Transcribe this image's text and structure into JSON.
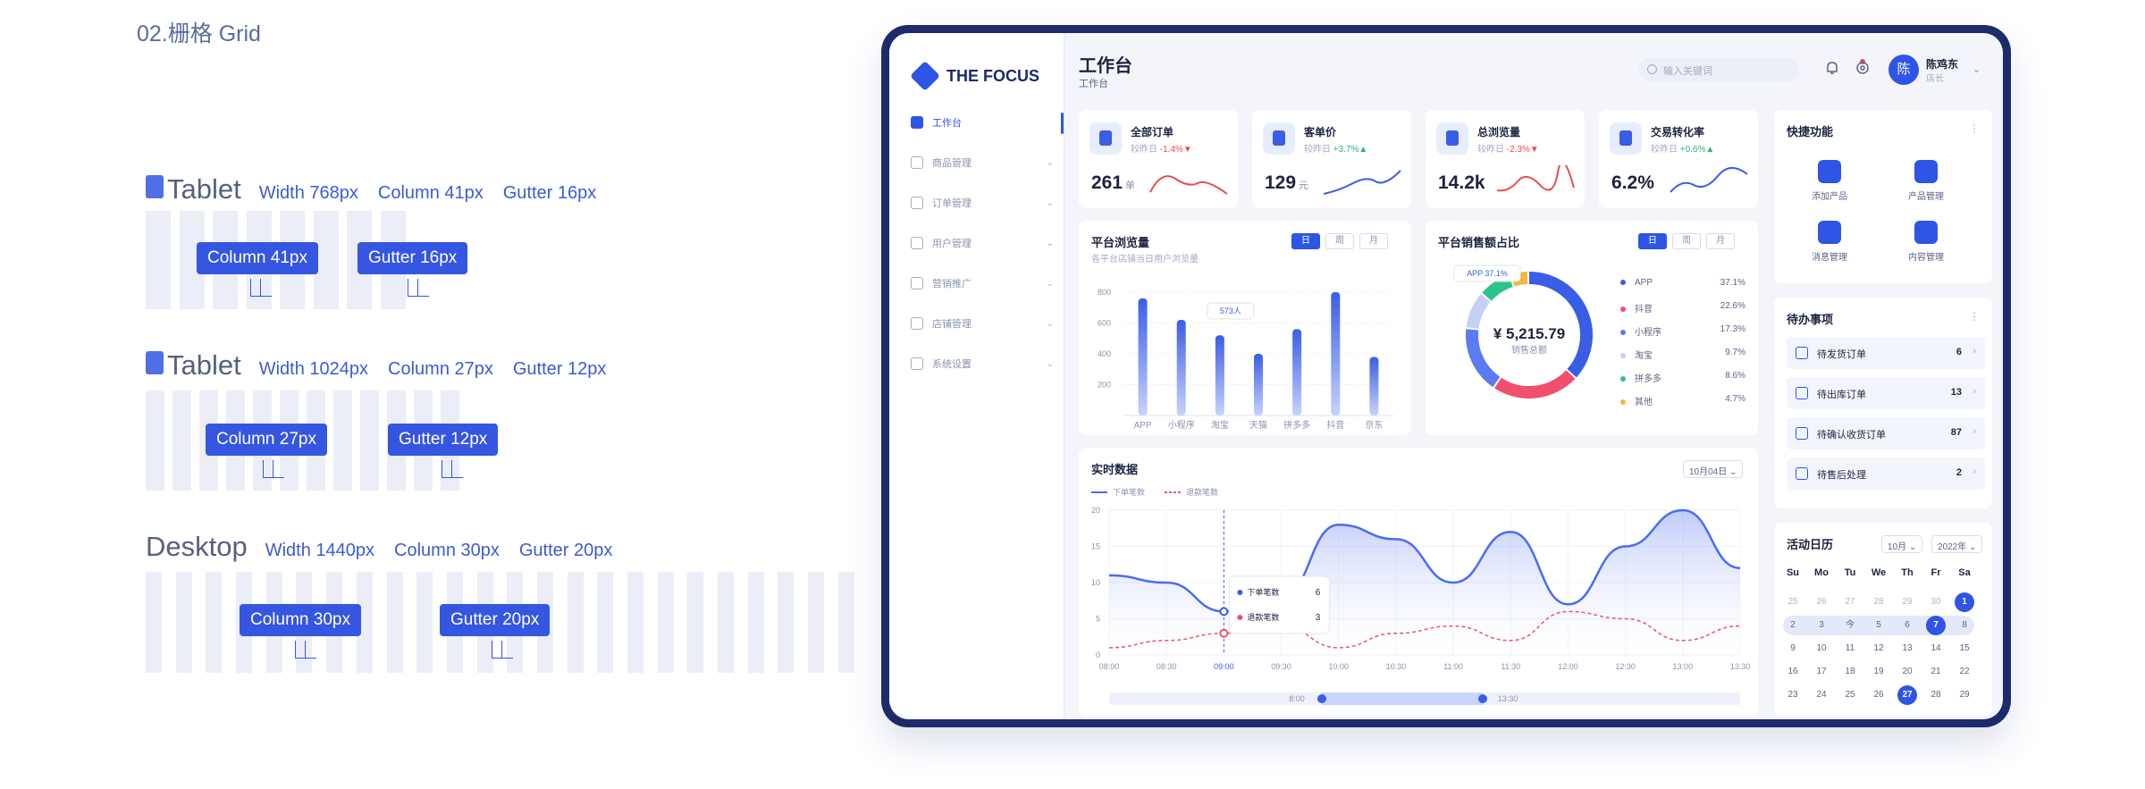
{
  "spec": {
    "title": "02.栅格 Grid",
    "grids": [
      {
        "name": "Tablet",
        "width": "Width 768px",
        "column": "Column 41px",
        "gutter": "Gutter 16px",
        "tag_col": "Column 41px",
        "tag_gut": "Gutter 16px"
      },
      {
        "name": "Tablet",
        "width": "Width 1024px",
        "column": "Column 27px",
        "gutter": "Gutter 12px",
        "tag_col": "Column 27px",
        "tag_gut": "Gutter 12px"
      },
      {
        "name": "Desktop",
        "width": "Width 1440px",
        "column": "Column 30px",
        "gutter": "Gutter 20px",
        "tag_col": "Column 30px",
        "tag_gut": "Gutter 20px"
      }
    ]
  },
  "app": {
    "logo": "THE FOCUS",
    "nav": [
      {
        "label": "工作台",
        "icon": "workbench-icon",
        "active": true
      },
      {
        "label": "商品管理",
        "icon": "box-icon"
      },
      {
        "label": "订单管理",
        "icon": "order-icon"
      },
      {
        "label": "用户管理",
        "icon": "user-icon"
      },
      {
        "label": "营销推广",
        "icon": "marketing-icon"
      },
      {
        "label": "店铺管理",
        "icon": "store-icon"
      },
      {
        "label": "系统设置",
        "icon": "settings-icon"
      }
    ],
    "header": {
      "title": "工作台",
      "subtitle": "工作台",
      "search_placeholder": "输入关键词",
      "user_initial": "陈",
      "user_name": "陈鸡东",
      "user_role": "店长"
    },
    "kpis": [
      {
        "label": "全部订单",
        "delta_prefix": "较昨日",
        "delta": "-1.4%▼",
        "trend": "down",
        "value": "261",
        "unit": "单",
        "spark_color": "#e94d4d"
      },
      {
        "label": "客单价",
        "delta_prefix": "较昨日",
        "delta": "+3.7%▲",
        "trend": "up",
        "value": "129",
        "unit": "元",
        "spark_color": "#3a5de6"
      },
      {
        "label": "总浏览量",
        "delta_prefix": "较昨日",
        "delta": "-2.3%▼",
        "trend": "down",
        "value": "14.2k",
        "unit": "",
        "spark_color": "#e94d4d"
      },
      {
        "label": "交易转化率",
        "delta_prefix": "较昨日",
        "delta": "+0.6%▲",
        "trend": "up",
        "value": "6.2%",
        "unit": "",
        "spark_color": "#3a5de6"
      }
    ],
    "browse": {
      "title": "平台浏览量",
      "subtitle": "各平台店铺当日用户浏览量",
      "segments": [
        "日",
        "周",
        "月"
      ],
      "tooltip": "573人"
    },
    "share": {
      "title": "平台销售额占比",
      "segments": [
        "日",
        "周",
        "月"
      ],
      "total": "¥ 5,215.79",
      "total_label": "销售总额",
      "callout": "APP 37.1%"
    },
    "realtime": {
      "title": "实时数据",
      "date_select": "10月04日",
      "legend_a": "下单笔数",
      "legend_b": "退款笔数",
      "tooltip_a_label": "下单笔数",
      "tooltip_a_value": "6",
      "tooltip_b_label": "退款笔数",
      "tooltip_b_value": "3",
      "range_start": "8:00",
      "range_end": "13:30"
    },
    "quick": {
      "title": "快捷功能",
      "items": [
        "添加产品",
        "产品管理",
        "消息管理",
        "内容管理"
      ]
    },
    "todo": {
      "title": "待办事项",
      "items": [
        {
          "label": "待发货订单",
          "count": "6"
        },
        {
          "label": "待出库订单",
          "count": "13"
        },
        {
          "label": "待确认收货订单",
          "count": "87"
        },
        {
          "label": "待售后处理",
          "count": "2"
        }
      ]
    },
    "calendar": {
      "title": "活动日历",
      "month": "10月",
      "year": "2022年",
      "weekdays": [
        "Su",
        "Mo",
        "Tu",
        "We",
        "Th",
        "Fr",
        "Sa"
      ],
      "rows": [
        [
          "25",
          "26",
          "27",
          "28",
          "29",
          "30",
          "1"
        ],
        [
          "2",
          "3",
          "今",
          "5",
          "6",
          "7",
          "8"
        ],
        [
          "9",
          "10",
          "11",
          "12",
          "13",
          "14",
          "15"
        ],
        [
          "16",
          "17",
          "18",
          "19",
          "20",
          "21",
          "22"
        ],
        [
          "23",
          "24",
          "25",
          "26",
          "27",
          "28",
          "29"
        ]
      ]
    }
  },
  "chart_data": [
    {
      "type": "bar",
      "categories": [
        "APP",
        "小程序",
        "淘宝",
        "天猫",
        "拼多多",
        "抖音",
        "京东"
      ],
      "values": [
        760,
        620,
        520,
        400,
        560,
        800,
        380
      ],
      "ylim": [
        0,
        800
      ],
      "yticks": [
        "800",
        "600",
        "400",
        "200"
      ]
    },
    {
      "type": "pie",
      "labels": [
        "APP",
        "抖音",
        "小程序",
        "淘宝",
        "拼多多",
        "其他"
      ],
      "values": [
        37.1,
        22.6,
        17.3,
        9.7,
        8.6,
        4.7
      ],
      "display": [
        "37.1%",
        "22.6%",
        "17.3%",
        "9.7%",
        "8.6%",
        "4.7%"
      ],
      "colors": [
        "#3a5de6",
        "#f0506e",
        "#5b7bf0",
        "#c5d0f6",
        "#2bc48a",
        "#f5b63a"
      ]
    },
    {
      "type": "line",
      "x": [
        "08:00",
        "08:30",
        "09:00",
        "09:30",
        "10:00",
        "10:30",
        "11:00",
        "11:30",
        "12:00",
        "12:30",
        "13:00",
        "13:30"
      ],
      "ylim": [
        0,
        20
      ],
      "yticks": [
        "20",
        "15",
        "10",
        "5",
        "0"
      ],
      "series": [
        {
          "name": "下单笔数",
          "values": [
            11,
            10,
            6,
            8,
            18,
            16,
            10,
            17,
            7,
            15,
            20,
            12
          ],
          "color": "#4a6cf0"
        },
        {
          "name": "退款笔数",
          "values": [
            1,
            2,
            3,
            4,
            1,
            3,
            4,
            2,
            6,
            5,
            2,
            4
          ],
          "color": "#f0506e"
        }
      ]
    }
  ]
}
